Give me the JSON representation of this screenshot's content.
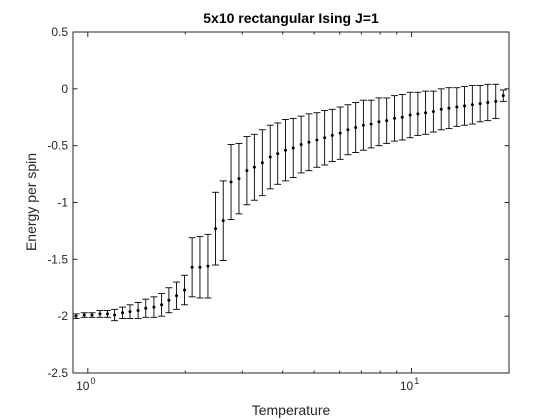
{
  "chart_data": {
    "type": "scatter",
    "title": "5x10 rectangular Ising J=1",
    "xlabel": "Temperature",
    "ylabel": "Energy per spin",
    "xscale": "log",
    "xlim": [
      0.9,
      20
    ],
    "ylim": [
      -2.5,
      0.5
    ],
    "grid": false,
    "legend": "none",
    "y_ticks": [
      {
        "value": 0.5,
        "label": "0.5"
      },
      {
        "value": 0,
        "label": "0"
      },
      {
        "value": -0.5,
        "label": "-0.5"
      },
      {
        "value": -1,
        "label": "-1"
      },
      {
        "value": -1.5,
        "label": "-1.5"
      },
      {
        "value": -2,
        "label": "-2"
      },
      {
        "value": -2.5,
        "label": "-2.5"
      }
    ],
    "x_ticks": [
      {
        "value": 1,
        "base": "10",
        "exp": "0"
      },
      {
        "value": 10,
        "base": "10",
        "exp": "1"
      }
    ],
    "colors": {
      "marker": "#000000",
      "axis": "#262626",
      "errorbar": "#000000"
    },
    "series": [
      {
        "x": [
          0.92,
          0.975,
          1.03,
          1.09,
          1.15,
          1.21,
          1.28,
          1.35,
          1.43,
          1.51,
          1.6,
          1.69,
          1.78,
          1.88,
          1.99,
          2.1,
          2.22,
          2.35,
          2.48,
          2.62,
          2.77,
          2.93,
          3.1,
          3.27,
          3.46,
          3.66,
          3.86,
          4.08,
          4.31,
          4.56,
          4.82,
          5.1,
          5.39,
          5.69,
          6.02,
          6.36,
          6.72,
          7.1,
          7.5,
          7.93,
          8.38,
          8.86,
          9.36,
          9.9,
          10.46,
          11.05,
          11.68,
          12.35,
          13.05,
          13.8,
          14.58,
          15.41,
          16.29,
          17.2,
          18.2,
          19.2
        ],
        "y": [
          -2.0,
          -1.99,
          -1.99,
          -1.98,
          -1.98,
          -1.99,
          -1.97,
          -1.96,
          -1.95,
          -1.93,
          -1.92,
          -1.9,
          -1.86,
          -1.82,
          -1.77,
          -1.57,
          -1.57,
          -1.56,
          -1.23,
          -1.16,
          -0.82,
          -0.79,
          -0.72,
          -0.69,
          -0.65,
          -0.6,
          -0.57,
          -0.54,
          -0.52,
          -0.49,
          -0.47,
          -0.45,
          -0.43,
          -0.41,
          -0.39,
          -0.36,
          -0.34,
          -0.32,
          -0.31,
          -0.29,
          -0.28,
          -0.26,
          -0.25,
          -0.23,
          -0.22,
          -0.21,
          -0.2,
          -0.18,
          -0.17,
          -0.16,
          -0.15,
          -0.14,
          -0.13,
          -0.12,
          -0.11,
          -0.06
        ],
        "err": [
          0.02,
          0.02,
          0.02,
          0.03,
          0.03,
          0.05,
          0.05,
          0.06,
          0.07,
          0.08,
          0.09,
          0.1,
          0.11,
          0.12,
          0.13,
          0.26,
          0.27,
          0.28,
          0.32,
          0.35,
          0.33,
          0.31,
          0.3,
          0.29,
          0.29,
          0.28,
          0.27,
          0.27,
          0.26,
          0.25,
          0.25,
          0.24,
          0.24,
          0.23,
          0.23,
          0.22,
          0.22,
          0.22,
          0.21,
          0.21,
          0.2,
          0.2,
          0.2,
          0.2,
          0.19,
          0.19,
          0.18,
          0.18,
          0.18,
          0.17,
          0.17,
          0.17,
          0.16,
          0.16,
          0.15,
          0.05
        ]
      }
    ]
  }
}
